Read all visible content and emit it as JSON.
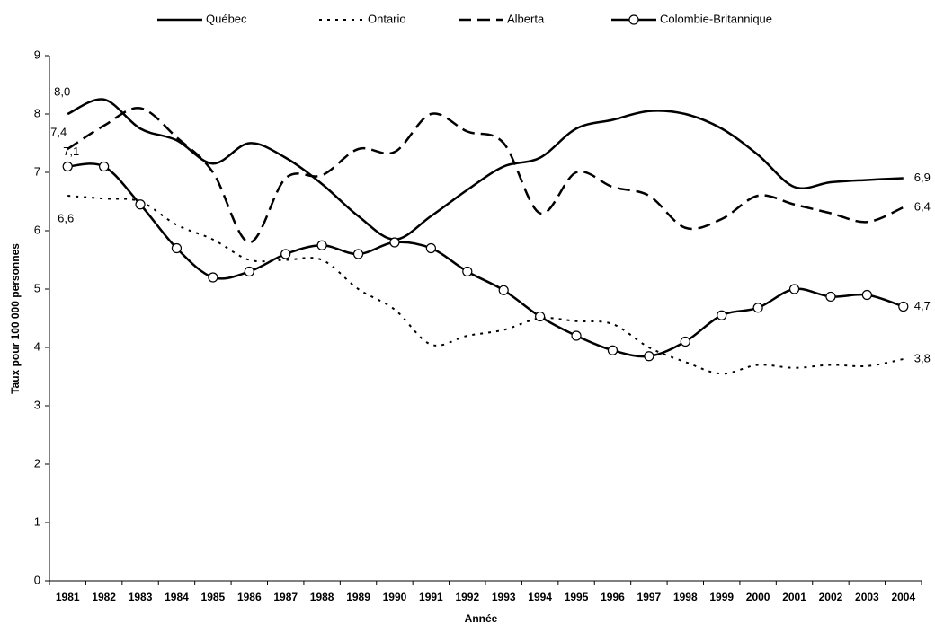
{
  "chart_data": {
    "type": "line",
    "xlabel": "Année",
    "ylabel": "Taux pour 100 000 personnes",
    "categories": [
      "1981",
      "1982",
      "1983",
      "1984",
      "1985",
      "1986",
      "1987",
      "1988",
      "1989",
      "1990",
      "1991",
      "1992",
      "1993",
      "1994",
      "1995",
      "1996",
      "1997",
      "1998",
      "1999",
      "2000",
      "2001",
      "2002",
      "2003",
      "2004"
    ],
    "ylim": [
      0,
      9
    ],
    "yticks": [
      0,
      1,
      2,
      3,
      4,
      5,
      6,
      7,
      8,
      9
    ],
    "legend": "top",
    "series": [
      {
        "name": "Québec",
        "color": "#000000",
        "line_style": "solid",
        "markers": false,
        "values": [
          8.0,
          8.25,
          7.75,
          7.55,
          7.15,
          7.5,
          7.25,
          6.8,
          6.25,
          5.85,
          6.25,
          6.7,
          7.1,
          7.25,
          7.75,
          7.9,
          8.05,
          8.0,
          7.75,
          7.3,
          6.75,
          6.83,
          6.87,
          6.9
        ],
        "value_labels": [
          "8,0",
          null,
          null,
          null,
          null,
          null,
          null,
          null,
          null,
          null,
          null,
          null,
          null,
          null,
          null,
          null,
          null,
          null,
          null,
          null,
          null,
          null,
          null,
          "6,9"
        ]
      },
      {
        "name": "Ontario",
        "color": "#000000",
        "line_style": "dotted",
        "markers": false,
        "values": [
          6.6,
          6.55,
          6.5,
          6.1,
          5.85,
          5.5,
          5.5,
          5.5,
          5.0,
          4.65,
          4.05,
          4.2,
          4.3,
          4.5,
          4.45,
          4.4,
          4.0,
          3.75,
          3.55,
          3.7,
          3.65,
          3.7,
          3.68,
          3.8
        ],
        "value_labels": [
          "6,6",
          null,
          null,
          null,
          null,
          null,
          null,
          null,
          null,
          null,
          null,
          null,
          null,
          null,
          null,
          null,
          null,
          null,
          null,
          null,
          null,
          null,
          null,
          "3,8"
        ]
      },
      {
        "name": "Alberta",
        "color": "#000000",
        "line_style": "dashed",
        "markers": false,
        "values": [
          7.4,
          7.8,
          8.1,
          7.6,
          7.0,
          5.8,
          6.9,
          6.95,
          7.4,
          7.35,
          8.0,
          7.7,
          7.5,
          6.3,
          7.0,
          6.75,
          6.6,
          6.05,
          6.2,
          6.6,
          6.45,
          6.3,
          6.15,
          6.4
        ],
        "value_labels": [
          "7,4",
          null,
          null,
          null,
          null,
          null,
          null,
          null,
          null,
          null,
          null,
          null,
          null,
          null,
          null,
          null,
          null,
          null,
          null,
          null,
          null,
          null,
          null,
          "6,4"
        ]
      },
      {
        "name": "Colombie-Britannique",
        "color": "#000000",
        "line_style": "solid",
        "markers": true,
        "values": [
          7.1,
          7.1,
          6.45,
          5.7,
          5.2,
          5.3,
          5.6,
          5.75,
          5.6,
          5.8,
          5.7,
          5.3,
          4.98,
          4.53,
          4.2,
          3.95,
          3.85,
          4.1,
          4.55,
          4.68,
          5.0,
          4.87,
          4.9,
          4.7
        ],
        "value_labels": [
          "7,1",
          null,
          null,
          null,
          null,
          null,
          null,
          null,
          null,
          null,
          null,
          null,
          null,
          null,
          null,
          null,
          null,
          null,
          null,
          null,
          null,
          null,
          null,
          "4,7"
        ]
      }
    ]
  }
}
